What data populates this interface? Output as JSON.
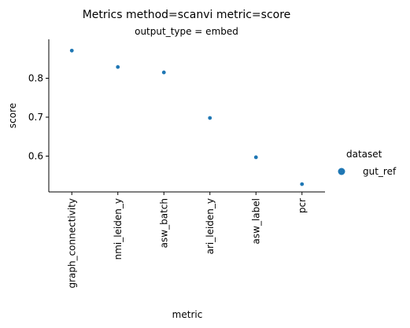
{
  "chart_data": {
    "type": "scatter",
    "title": "Metrics method=scanvi metric=score",
    "subtitle": "output_type = embed",
    "xlabel": "metric",
    "ylabel": "score",
    "categories": [
      "graph_connectivity",
      "nmi_leiden_y",
      "asw_batch",
      "ari_leiden_y",
      "asw_label",
      "pcr"
    ],
    "y_ticks": [
      0.6,
      0.7,
      0.8
    ],
    "y_tick_labels": [
      "0.6",
      "0.7",
      "0.8"
    ],
    "ylim": [
      0.508,
      0.9
    ],
    "grid": false,
    "legend": {
      "title": "dataset",
      "placement": "right"
    },
    "series": [
      {
        "name": "gut_ref",
        "color": "#1f77b4",
        "values": [
          0.871,
          0.829,
          0.815,
          0.698,
          0.597,
          0.528
        ]
      }
    ]
  }
}
